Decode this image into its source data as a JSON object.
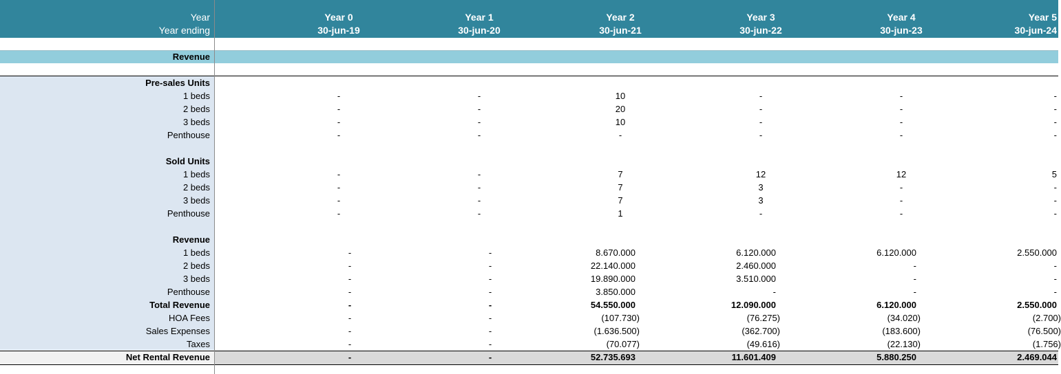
{
  "header": {
    "row1_label": "Year",
    "row2_label": "Year ending",
    "years": [
      "Year 0",
      "Year 1",
      "Year 2",
      "Year 3",
      "Year 4",
      "Year 5"
    ],
    "dates": [
      "30-jun-19",
      "30-jun-20",
      "30-jun-21",
      "30-jun-22",
      "30-jun-23",
      "30-jun-24"
    ]
  },
  "section_title": "Revenue",
  "presales": {
    "title": "Pre-sales Units",
    "rows": [
      {
        "label": "1 beds",
        "values": [
          "-",
          "-",
          "10",
          "-",
          "-",
          "-"
        ]
      },
      {
        "label": "2 beds",
        "values": [
          "-",
          "-",
          "20",
          "-",
          "-",
          "-"
        ]
      },
      {
        "label": "3 beds",
        "values": [
          "-",
          "-",
          "10",
          "-",
          "-",
          "-"
        ]
      },
      {
        "label": "Penthouse",
        "values": [
          "-",
          "-",
          "-",
          "-",
          "-",
          "-"
        ]
      }
    ]
  },
  "sold": {
    "title": "Sold Units",
    "rows": [
      {
        "label": "1 beds",
        "values": [
          "-",
          "-",
          "7",
          "12",
          "12",
          "5"
        ]
      },
      {
        "label": "2 beds",
        "values": [
          "-",
          "-",
          "7",
          "3",
          "-",
          "-"
        ]
      },
      {
        "label": "3 beds",
        "values": [
          "-",
          "-",
          "7",
          "3",
          "-",
          "-"
        ]
      },
      {
        "label": "Penthouse",
        "values": [
          "-",
          "-",
          "1",
          "-",
          "-",
          "-"
        ]
      }
    ]
  },
  "revenue": {
    "title": "Revenue",
    "rows": [
      {
        "label": "1 beds",
        "values": [
          "-",
          "-",
          "8.670.000",
          "6.120.000",
          "6.120.000",
          "2.550.000"
        ]
      },
      {
        "label": "2 beds",
        "values": [
          "-",
          "-",
          "22.140.000",
          "2.460.000",
          "-",
          "-"
        ]
      },
      {
        "label": "3 beds",
        "values": [
          "-",
          "-",
          "19.890.000",
          "3.510.000",
          "-",
          "-"
        ]
      },
      {
        "label": "Penthouse",
        "values": [
          "-",
          "-",
          "3.850.000",
          "-",
          "-",
          "-"
        ]
      }
    ],
    "total": {
      "label": "Total Revenue",
      "values": [
        "-",
        "-",
        "54.550.000",
        "12.090.000",
        "6.120.000",
        "2.550.000"
      ]
    },
    "deductions": [
      {
        "label": "HOA Fees",
        "values": [
          "-",
          "-",
          "(107.730)",
          "(76.275)",
          "(34.020)",
          "(2.700)"
        ]
      },
      {
        "label": "Sales Expenses",
        "values": [
          "-",
          "-",
          "(1.636.500)",
          "(362.700)",
          "(183.600)",
          "(76.500)"
        ]
      },
      {
        "label": "Taxes",
        "values": [
          "-",
          "-",
          "(70.077)",
          "(49.616)",
          "(22.130)",
          "(1.756)"
        ]
      }
    ],
    "net": {
      "label": "Net Rental Revenue",
      "values": [
        "-",
        "-",
        "52.735.693",
        "11.601.409",
        "5.880.250",
        "2.469.044"
      ]
    }
  },
  "colors": {
    "header_bg": "#31859c",
    "section_bg": "#92cddc",
    "label_bg": "#dce6f1",
    "total_bg": "#d9d9d9"
  }
}
